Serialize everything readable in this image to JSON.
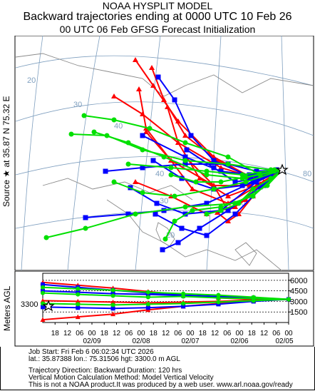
{
  "header": {
    "title_line1": "NOAA HYSPLIT MODEL",
    "title_line2": "Backward trajectories ending at 0000 UTC 10 Feb 26",
    "title_line3": "00 UTC 06 Feb    GFSG  Forecast Initialization"
  },
  "map": {
    "side_label": "Source ★ at   35.87 N   75.32 E",
    "lat_labels": [
      "20",
      "30",
      "40",
      "40",
      "30",
      "20"
    ],
    "lon_labels": [
      "60",
      "70",
      "80"
    ],
    "source_marker": "star-icon"
  },
  "colors": {
    "series_red": "#ff0000",
    "series_blue": "#0000ff",
    "series_green": "#00e000",
    "grid": "#7f9fbf",
    "coast": "#8a8a8a"
  },
  "chart_data": [
    {
      "type": "line",
      "title": "Backward trajectories ending at 0000 UTC 10 Feb 26",
      "note": "Trajectory map (approximate path shapes)",
      "series": [
        {
          "color": "red",
          "count": 9
        },
        {
          "color": "blue",
          "count": 9
        },
        {
          "color": "green",
          "count": 9
        }
      ]
    },
    {
      "type": "line",
      "ylabel": "Meters AGL",
      "yticks": [
        1500,
        3000,
        4500,
        6000
      ],
      "start_label": "3300",
      "xticks": [
        "18",
        "12",
        "06",
        "00",
        "18",
        "12",
        "06",
        "00",
        "18",
        "12",
        "06",
        "00",
        "18",
        "12",
        "06",
        "00",
        "18",
        "12",
        "06",
        "00"
      ],
      "date_labels": [
        "02/09",
        "02/08",
        "02/07",
        "02/06",
        "02/05"
      ],
      "ylim": [
        0,
        7000
      ],
      "xlim_hours": [
        -120,
        0
      ],
      "series": [
        {
          "color": "red",
          "values": [
            3300,
            3100,
            2700,
            2300,
            1800,
            1200,
            800,
            400
          ]
        },
        {
          "color": "red",
          "values": [
            3300,
            3300,
            3500,
            3900,
            4400,
            4900,
            5300,
            5700
          ]
        },
        {
          "color": "red",
          "values": [
            3300,
            3200,
            3000,
            2900,
            2800,
            2900,
            3000,
            3100
          ]
        },
        {
          "color": "blue",
          "values": [
            3300,
            3500,
            3700,
            3900,
            4200,
            4600,
            5000,
            5400
          ]
        },
        {
          "color": "blue",
          "values": [
            3300,
            3000,
            2600,
            2300,
            2100,
            2000,
            2100,
            2200
          ]
        },
        {
          "color": "blue",
          "values": [
            3300,
            3400,
            3600,
            3800,
            4000,
            4100,
            4300,
            4500
          ]
        },
        {
          "color": "green",
          "values": [
            3300,
            3600,
            3900,
            4100,
            4300,
            4600,
            4800,
            5000
          ]
        },
        {
          "color": "green",
          "values": [
            3300,
            3100,
            2900,
            2700,
            2600,
            2500,
            2600,
            2700
          ]
        },
        {
          "color": "green",
          "values": [
            3300,
            3400,
            3500,
            3700,
            3600,
            3800,
            4000,
            4200
          ]
        }
      ]
    }
  ],
  "info": {
    "line1": "Job Start: Fri Feb  6 06:02:34 UTC 2026",
    "line2": "lat.: 35.87388   lon.: 75.31506   hgt: 3300.0 m AGL",
    "line3": "Trajectory Direction: Backward       Duration: 120 hrs",
    "line4": "Vertical Motion Calculation Method: Model Vertical Velocity",
    "line5": "This is not a NOAA product.It was produced by a web user.  www.arl.noaa.gov/ready"
  }
}
